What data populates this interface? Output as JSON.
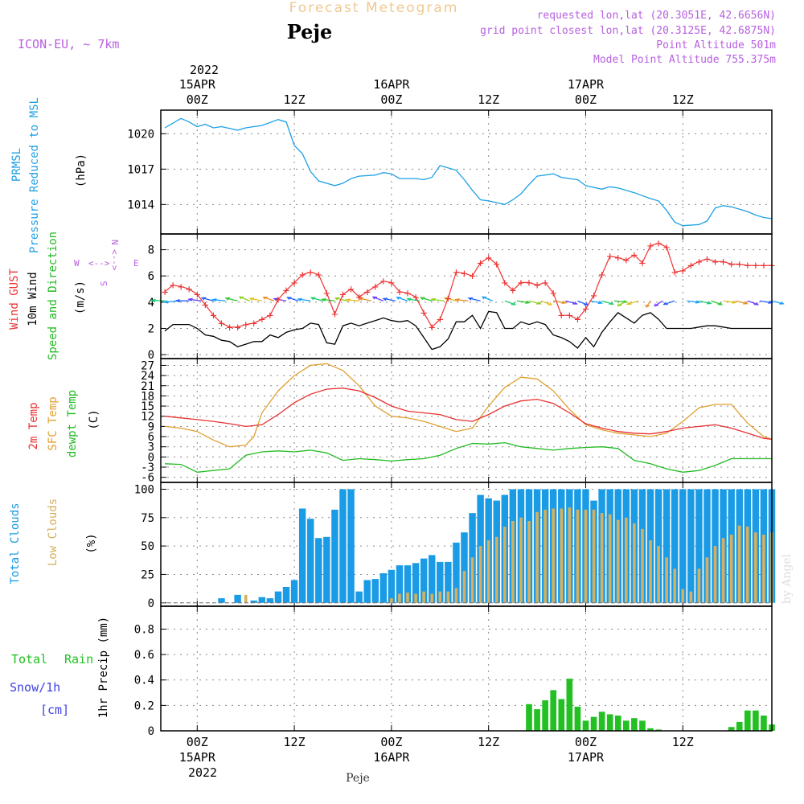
{
  "header": {
    "title": "Forecast Meteogram",
    "location": "Peje",
    "model": "ICON-EU, ~ 7km",
    "requested": "requested lon,lat (20.3051E, 42.6656N)",
    "grid_point": "grid point closest lon,lat (20.3125E, 42.6875N)",
    "point_altitude": "Point Altitude 501m",
    "model_altitude": "Model Point Altitude 755.375m",
    "footer_location": "Peje",
    "credit": "by Angel"
  },
  "time_axis": {
    "top_year": "2022",
    "ticks": [
      {
        "label": "00Z",
        "date": "15APR",
        "hours": 0
      },
      {
        "label": "12Z",
        "date": "",
        "hours": 12
      },
      {
        "label": "00Z",
        "date": "16APR",
        "hours": 24
      },
      {
        "label": "12Z",
        "date": "",
        "hours": 36
      },
      {
        "label": "00Z",
        "date": "17APR",
        "hours": 48
      },
      {
        "label": "12Z",
        "date": "",
        "hours": 60
      }
    ],
    "range_hours": [
      -4.5,
      71
    ],
    "bottom_year": "2022"
  },
  "colors": {
    "pressure": "#1ea0e6",
    "gust": "#ee3333",
    "wind": "#000000",
    "direction": "#22bb22",
    "temp2m": "#e83030",
    "sfc_temp": "#e0a030",
    "dewpt": "#22bb22",
    "total_clouds": "#1a9be6",
    "low_clouds": "#d4b060",
    "rain": "#22c022",
    "snow": "#4040e0",
    "title": "#f0c890",
    "meta": "#b860e0"
  },
  "panels": {
    "pressure": {
      "labels": [
        "PRMSL",
        "Pressure Reduced to MSL"
      ],
      "unit": "(hPa)",
      "ylim": [
        1011.5,
        1022
      ],
      "yticks": [
        1014,
        1017,
        1020
      ]
    },
    "wind": {
      "labels": [
        "Wind GUST",
        "10m Wind",
        "Speed and Direction"
      ],
      "unit": "(m/s)",
      "ylim": [
        -0.3,
        9.2
      ],
      "yticks": [
        0,
        2,
        4,
        6,
        8
      ],
      "compass": {
        "n": "N",
        "s": "S",
        "w": "W",
        "e": "E"
      }
    },
    "temperature": {
      "labels": [
        "2m Temp",
        "SFC Temp",
        "dewpt Temp"
      ],
      "unit": "(C)",
      "ylim": [
        -7.5,
        29
      ],
      "yticks": [
        -6,
        -3,
        0,
        3,
        6,
        9,
        12,
        15,
        18,
        21,
        24,
        27
      ]
    },
    "clouds": {
      "labels": [
        "Total Clouds",
        "Low Clouds"
      ],
      "unit": "(%)",
      "ylim": [
        -3,
        106
      ],
      "yticks": [
        0,
        25,
        50,
        75,
        100
      ]
    },
    "precip": {
      "labels": [
        "Total",
        "Rain",
        "Snow/1h",
        "[cm]"
      ],
      "unit": "1hr Precip (mm)",
      "ylim": [
        0,
        0.98
      ],
      "yticks": [
        0,
        0.2,
        0.4,
        0.6,
        0.8
      ]
    }
  },
  "chart_data": [
    {
      "type": "line",
      "name": "pressure",
      "x": [
        -4,
        -2,
        -1,
        0,
        1,
        2,
        3,
        5,
        6,
        7,
        8,
        10,
        11,
        12,
        13,
        14,
        15,
        17,
        18,
        19,
        20,
        22,
        23,
        24,
        25,
        27,
        28,
        29,
        30,
        32,
        33,
        34,
        35,
        36,
        38,
        39,
        40,
        41,
        42,
        44,
        45,
        46,
        47,
        48,
        50,
        51,
        52,
        53,
        54,
        56,
        57,
        58,
        59,
        60,
        62,
        63,
        64,
        65,
        66,
        68,
        69,
        70,
        71
      ],
      "y": [
        1020.5,
        1021.3,
        1021.0,
        1020.6,
        1020.8,
        1020.5,
        1020.6,
        1020.3,
        1020.5,
        1020.6,
        1020.7,
        1021.2,
        1021.0,
        1019.0,
        1018.3,
        1016.8,
        1016.0,
        1015.6,
        1015.8,
        1016.2,
        1016.4,
        1016.5,
        1016.7,
        1016.6,
        1016.2,
        1016.2,
        1016.1,
        1016.3,
        1017.3,
        1016.9,
        1016.1,
        1015.2,
        1014.4,
        1014.3,
        1014.0,
        1014.4,
        1014.9,
        1015.7,
        1016.4,
        1016.6,
        1016.3,
        1016.2,
        1016.1,
        1015.6,
        1015.3,
        1015.5,
        1015.4,
        1015.2,
        1015.0,
        1014.5,
        1014.3,
        1013.5,
        1012.5,
        1012.2,
        1012.3,
        1012.6,
        1013.7,
        1013.9,
        1013.8,
        1013.4,
        1013.1,
        1012.9,
        1012.8
      ]
    },
    {
      "type": "line",
      "name": "10m wind speed",
      "x": [
        -4,
        -3,
        -2,
        -1,
        0,
        1,
        2,
        3,
        4,
        5,
        6,
        7,
        8,
        9,
        10,
        11,
        12,
        13,
        14,
        15,
        16,
        17,
        18,
        19,
        20,
        21,
        22,
        23,
        24,
        25,
        26,
        27,
        28,
        29,
        30,
        31,
        32,
        33,
        34,
        35,
        36,
        37,
        38,
        39,
        40,
        41,
        42,
        43,
        44,
        45,
        46,
        47,
        48,
        49,
        50,
        51,
        52,
        53,
        54,
        55,
        56,
        57,
        58,
        59,
        60,
        61,
        62,
        63,
        64,
        65,
        66,
        67,
        68,
        69,
        70,
        71
      ],
      "y": [
        1.8,
        2.3,
        2.3,
        2.3,
        2.0,
        1.5,
        1.4,
        1.1,
        1.0,
        0.6,
        0.8,
        1.0,
        1.0,
        1.5,
        1.3,
        1.7,
        1.9,
        2.0,
        2.4,
        2.3,
        0.9,
        0.8,
        2.2,
        2.4,
        2.2,
        2.4,
        2.6,
        2.8,
        2.6,
        2.5,
        2.6,
        2.2,
        1.3,
        0.4,
        0.6,
        1.2,
        2.5,
        2.5,
        3.0,
        2.0,
        3.3,
        3.2,
        2.0,
        2.0,
        2.5,
        2.3,
        2.5,
        2.3,
        1.5,
        1.3,
        1.0,
        0.5,
        1.3,
        0.6,
        1.7,
        2.5,
        3.2,
        2.8,
        2.4,
        3.0,
        3.2,
        2.7,
        2.0,
        2.0,
        2.0,
        2.0,
        2.1,
        2.2,
        2.2,
        2.1,
        2.0,
        2.0,
        2.0,
        2.0,
        2.0,
        2.0
      ]
    },
    {
      "type": "line",
      "name": "wind gust",
      "x": [
        -4,
        -3,
        -2,
        -1,
        0,
        1,
        2,
        3,
        4,
        5,
        6,
        7,
        8,
        9,
        10,
        11,
        12,
        13,
        14,
        15,
        16,
        17,
        18,
        19,
        20,
        21,
        22,
        23,
        24,
        25,
        26,
        27,
        28,
        29,
        30,
        31,
        32,
        33,
        34,
        35,
        36,
        37,
        38,
        39,
        40,
        41,
        42,
        43,
        44,
        45,
        46,
        47,
        48,
        49,
        50,
        51,
        52,
        53,
        54,
        55,
        56,
        57,
        58,
        59,
        60,
        61,
        62,
        63,
        64,
        65,
        66,
        67,
        68,
        69,
        70,
        71
      ],
      "y": [
        4.8,
        5.3,
        5.2,
        5.0,
        4.6,
        3.8,
        3.0,
        2.4,
        2.1,
        2.1,
        2.3,
        2.4,
        2.7,
        3.0,
        4.2,
        4.9,
        5.5,
        6.1,
        6.3,
        6.1,
        4.7,
        3.1,
        4.6,
        5.0,
        4.4,
        4.8,
        5.2,
        5.6,
        5.5,
        4.8,
        4.7,
        4.4,
        3.2,
        2.1,
        2.7,
        4.3,
        6.3,
        6.2,
        6.0,
        7.0,
        7.4,
        6.9,
        5.5,
        4.9,
        5.5,
        5.5,
        5.3,
        5.5,
        4.7,
        3.0,
        3.0,
        2.7,
        3.5,
        4.5,
        6.1,
        7.5,
        7.4,
        7.2,
        7.6,
        7.0,
        8.3,
        8.5,
        8.2,
        6.3,
        6.4,
        6.8,
        7.1,
        7.3,
        7.1,
        7.1,
        6.9,
        6.9,
        6.8,
        6.8,
        6.8,
        6.8
      ]
    },
    {
      "type": "line",
      "name": "2m temperature",
      "x": [
        -4,
        -2,
        0,
        2,
        4,
        6,
        8,
        10,
        12,
        14,
        16,
        18,
        20,
        22,
        24,
        26,
        28,
        30,
        32,
        34,
        36,
        38,
        40,
        42,
        44,
        46,
        48,
        50,
        52,
        54,
        56,
        58,
        60,
        62,
        64,
        66,
        68,
        70,
        71
      ],
      "y": [
        12,
        11.5,
        11.0,
        10.5,
        9.8,
        9.0,
        9.5,
        12.5,
        16.0,
        18.5,
        20.0,
        20.3,
        19.5,
        17.5,
        15.0,
        13.5,
        13.0,
        12.5,
        11.0,
        10.5,
        12.5,
        15.0,
        16.5,
        17.0,
        15.8,
        13.0,
        9.8,
        8.5,
        7.5,
        7.0,
        6.8,
        7.5,
        8.5,
        9.0,
        9.5,
        8.5,
        7.0,
        5.5,
        5.2
      ]
    },
    {
      "type": "line",
      "name": "surface temperature",
      "x": [
        -4,
        -2,
        0,
        2,
        4,
        6,
        7,
        8,
        10,
        12,
        14,
        16,
        18,
        20,
        22,
        24,
        26,
        28,
        30,
        32,
        34,
        36,
        38,
        40,
        42,
        44,
        46,
        48,
        50,
        52,
        54,
        56,
        58,
        60,
        62,
        64,
        66,
        68,
        70,
        71
      ],
      "y": [
        9.0,
        8.5,
        7.5,
        5.0,
        3.0,
        3.5,
        6.0,
        13.0,
        19.5,
        24.0,
        27.0,
        27.5,
        25.5,
        21.0,
        15.0,
        12.0,
        11.5,
        10.5,
        9.0,
        7.5,
        8.5,
        15.0,
        20.5,
        23.5,
        23.0,
        19.5,
        14.0,
        9.5,
        8.0,
        7.0,
        6.5,
        6.0,
        7.0,
        10.5,
        14.5,
        15.5,
        15.5,
        10.0,
        6.0,
        5.2
      ]
    },
    {
      "type": "line",
      "name": "dewpoint temperature",
      "x": [
        -4,
        -2,
        0,
        2,
        4,
        6,
        8,
        10,
        12,
        14,
        16,
        18,
        20,
        22,
        24,
        26,
        28,
        30,
        32,
        34,
        36,
        38,
        40,
        42,
        44,
        46,
        48,
        50,
        52,
        54,
        56,
        58,
        60,
        62,
        64,
        66,
        68,
        70,
        71
      ],
      "y": [
        -2,
        -2.2,
        -4.5,
        -4.0,
        -3.5,
        0.5,
        1.5,
        1.8,
        1.5,
        2.0,
        1.2,
        -1.0,
        -0.5,
        -0.8,
        -1.2,
        -0.8,
        -0.5,
        0.5,
        2.5,
        4.0,
        3.8,
        4.2,
        3.0,
        2.5,
        2.0,
        2.5,
        2.8,
        3.0,
        2.5,
        -1.0,
        -2.0,
        -3.5,
        -4.5,
        -4.0,
        -2.5,
        -0.5,
        -0.5,
        -0.5,
        -0.5
      ]
    },
    {
      "type": "bar",
      "name": "total clouds",
      "x": [
        3,
        4,
        5,
        6,
        7,
        8,
        9,
        10,
        11,
        12,
        13,
        14,
        15,
        16,
        17,
        18,
        19,
        20,
        21,
        22,
        23,
        24,
        25,
        26,
        27,
        28,
        29,
        30,
        31,
        32,
        33,
        34,
        35,
        36,
        37,
        38,
        39,
        40,
        41,
        42,
        43,
        44,
        45,
        46,
        47,
        48,
        49,
        50,
        51,
        52,
        53,
        54,
        55,
        56,
        57,
        58,
        59,
        60,
        61,
        62,
        63,
        64,
        65,
        66,
        67,
        68,
        69,
        70,
        71
      ],
      "y": [
        4,
        0,
        7,
        0,
        2,
        5,
        4,
        10,
        14,
        20,
        83,
        74,
        57,
        58,
        82,
        100,
        100,
        10,
        20,
        21,
        26,
        29,
        33,
        33,
        35,
        39,
        42,
        36,
        36,
        53,
        62,
        79,
        95,
        92,
        90,
        95,
        100,
        100,
        100,
        100,
        100,
        100,
        100,
        100,
        100,
        100,
        90,
        100,
        100,
        100,
        100,
        100,
        100,
        100,
        100,
        100,
        100,
        100,
        100,
        100,
        100,
        100,
        100,
        100,
        100,
        100,
        100,
        100,
        100
      ]
    },
    {
      "type": "bar",
      "name": "low clouds",
      "x": [
        6,
        24,
        25,
        26,
        27,
        28,
        29,
        30,
        31,
        32,
        33,
        34,
        35,
        36,
        37,
        38,
        39,
        40,
        41,
        42,
        43,
        44,
        45,
        46,
        47,
        48,
        49,
        50,
        51,
        52,
        53,
        54,
        55,
        56,
        57,
        58,
        59,
        60,
        61,
        62,
        63,
        64,
        65,
        66,
        67,
        68,
        69,
        70,
        71
      ],
      "y": [
        7,
        4,
        8,
        9,
        8,
        10,
        8,
        10,
        10,
        13,
        28,
        40,
        50,
        55,
        58,
        67,
        72,
        75,
        72,
        80,
        82,
        83,
        83,
        84,
        82,
        82,
        82,
        79,
        78,
        73,
        75,
        70,
        65,
        55,
        50,
        40,
        30,
        12,
        10,
        30,
        40,
        50,
        57,
        60,
        68,
        67,
        62,
        60,
        62
      ]
    },
    {
      "type": "bar",
      "name": "rain",
      "x": [
        41,
        42,
        43,
        44,
        45,
        46,
        47,
        48,
        49,
        50,
        51,
        52,
        53,
        54,
        55,
        56,
        57,
        66,
        67,
        68,
        69,
        70,
        71
      ],
      "y": [
        0.21,
        0.17,
        0.24,
        0.32,
        0.25,
        0.41,
        0.19,
        0.08,
        0.11,
        0.15,
        0.13,
        0.12,
        0.08,
        0.1,
        0.08,
        0.02,
        0.01,
        0.03,
        0.07,
        0.16,
        0.16,
        0.12,
        0.05
      ]
    }
  ]
}
